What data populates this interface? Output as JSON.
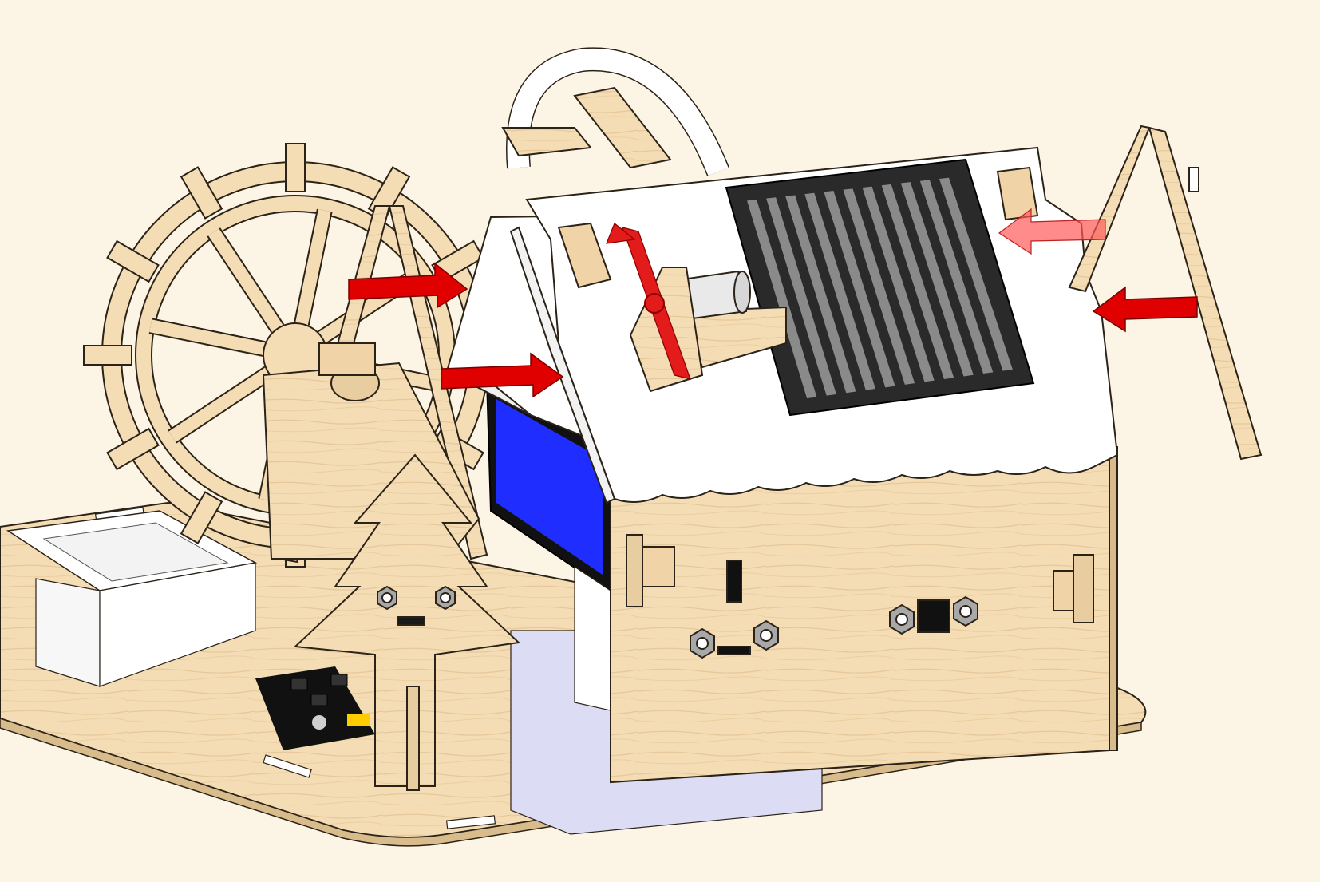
{
  "scene": {
    "background": "#fcf5e6",
    "wood_color": "#f4dcb4",
    "wood_edge": "#d9bc8c",
    "outline": "#2b2218",
    "roof_color": "#ffffff",
    "solar_panel_frame": "#2a2a2a",
    "solar_panel_cells": "#8a8a8a",
    "lcd_screen": "#1f2eff",
    "lcd_bezel": "#101010",
    "fan_blade": "#e31b1b",
    "arrow_color": "#e00000",
    "arrow_count": 5
  }
}
